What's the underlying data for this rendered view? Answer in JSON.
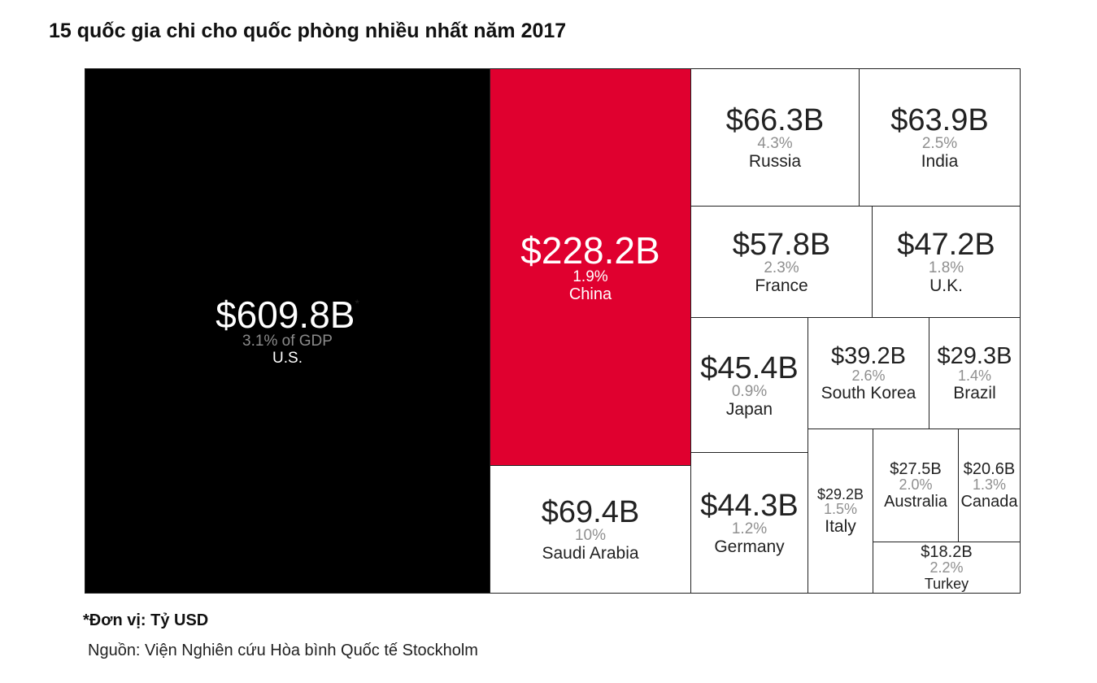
{
  "title": "15 quốc gia chi cho quốc phòng nhiều nhất năm 2017",
  "footnote": "*Đơn vị: Tỷ USD",
  "source": "Nguồn: Viện Nghiên cứu Hòa bình Quốc tế Stockholm",
  "colors": {
    "us": "#000000",
    "china": "#e0002f",
    "other": "#ffffff",
    "border": "#222222",
    "muted": "#8f8f8f"
  },
  "chart_data": {
    "type": "treemap",
    "unit": "B",
    "items": [
      {
        "country": "U.S.",
        "value": 609.8,
        "value_label": "$609.8B",
        "value_marker": "*",
        "gdp_label": "3.1% of GDP"
      },
      {
        "country": "China",
        "value": 228.2,
        "value_label": "$228.2B",
        "gdp_label": "1.9%"
      },
      {
        "country": "Saudi Arabia",
        "value": 69.4,
        "value_label": "$69.4B",
        "gdp_label": "10%"
      },
      {
        "country": "Russia",
        "value": 66.3,
        "value_label": "$66.3B",
        "gdp_label": "4.3%"
      },
      {
        "country": "India",
        "value": 63.9,
        "value_label": "$63.9B",
        "gdp_label": "2.5%"
      },
      {
        "country": "France",
        "value": 57.8,
        "value_label": "$57.8B",
        "gdp_label": "2.3%"
      },
      {
        "country": "U.K.",
        "value": 47.2,
        "value_label": "$47.2B",
        "gdp_label": "1.8%"
      },
      {
        "country": "Japan",
        "value": 45.4,
        "value_label": "$45.4B",
        "gdp_label": "0.9%"
      },
      {
        "country": "Germany",
        "value": 44.3,
        "value_label": "$44.3B",
        "gdp_label": "1.2%"
      },
      {
        "country": "South Korea",
        "value": 39.2,
        "value_label": "$39.2B",
        "gdp_label": "2.6%"
      },
      {
        "country": "Brazil",
        "value": 29.3,
        "value_label": "$29.3B",
        "gdp_label": "1.4%"
      },
      {
        "country": "Italy",
        "value": 29.2,
        "value_label": "$29.2B",
        "gdp_label": "1.5%"
      },
      {
        "country": "Australia",
        "value": 27.5,
        "value_label": "$27.5B",
        "gdp_label": "2.0%"
      },
      {
        "country": "Canada",
        "value": 20.6,
        "value_label": "$20.6B",
        "gdp_label": "1.3%"
      },
      {
        "country": "Turkey",
        "value": 18.2,
        "value_label": "$18.2B",
        "gdp_label": "2.2%"
      }
    ]
  }
}
